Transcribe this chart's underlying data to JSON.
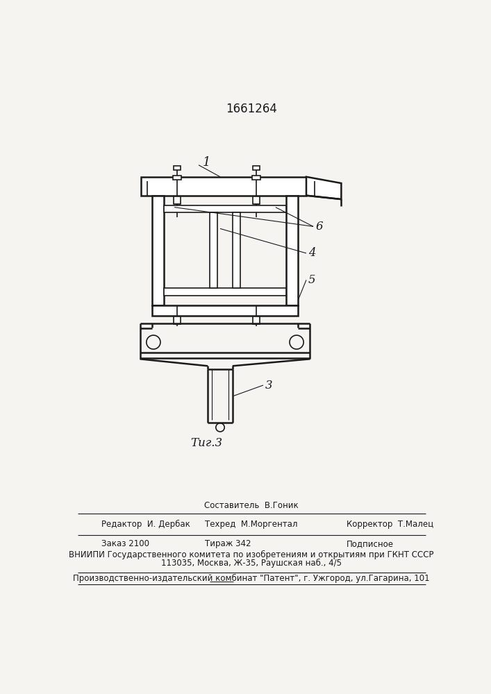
{
  "patent_number": "1661264",
  "fig_label": "Τиг.3",
  "bg_color": "#f5f4f1",
  "line_color": "#1a1a1a",
  "label_1": "1",
  "label_3": "3",
  "label_4": "4",
  "label_5": "5",
  "label_6": "6",
  "footer_sestavitel": "Составитель  В.Гоник",
  "footer_tehred": "Техред  М.Моргентал",
  "footer_redaktor": "Редактор  И. Дербак",
  "footer_korrektor": "Корректор  Т.Малец",
  "footer_zakaz": "Заказ 2100",
  "footer_tirazh": "Тираж 342",
  "footer_podpisnoe": "Подписное",
  "footer_vniiipi": "ВНИИПИ Государственного комитета по изобретениям и открытиям при ГКНТ СССР",
  "footer_addr": "113035, Москва, Ж-35, Раушская наб., 4/5",
  "footer_patent": "Производственно-издательский комбинат \"Патент\", г. Ужгород, ул.Гагарина, 101"
}
